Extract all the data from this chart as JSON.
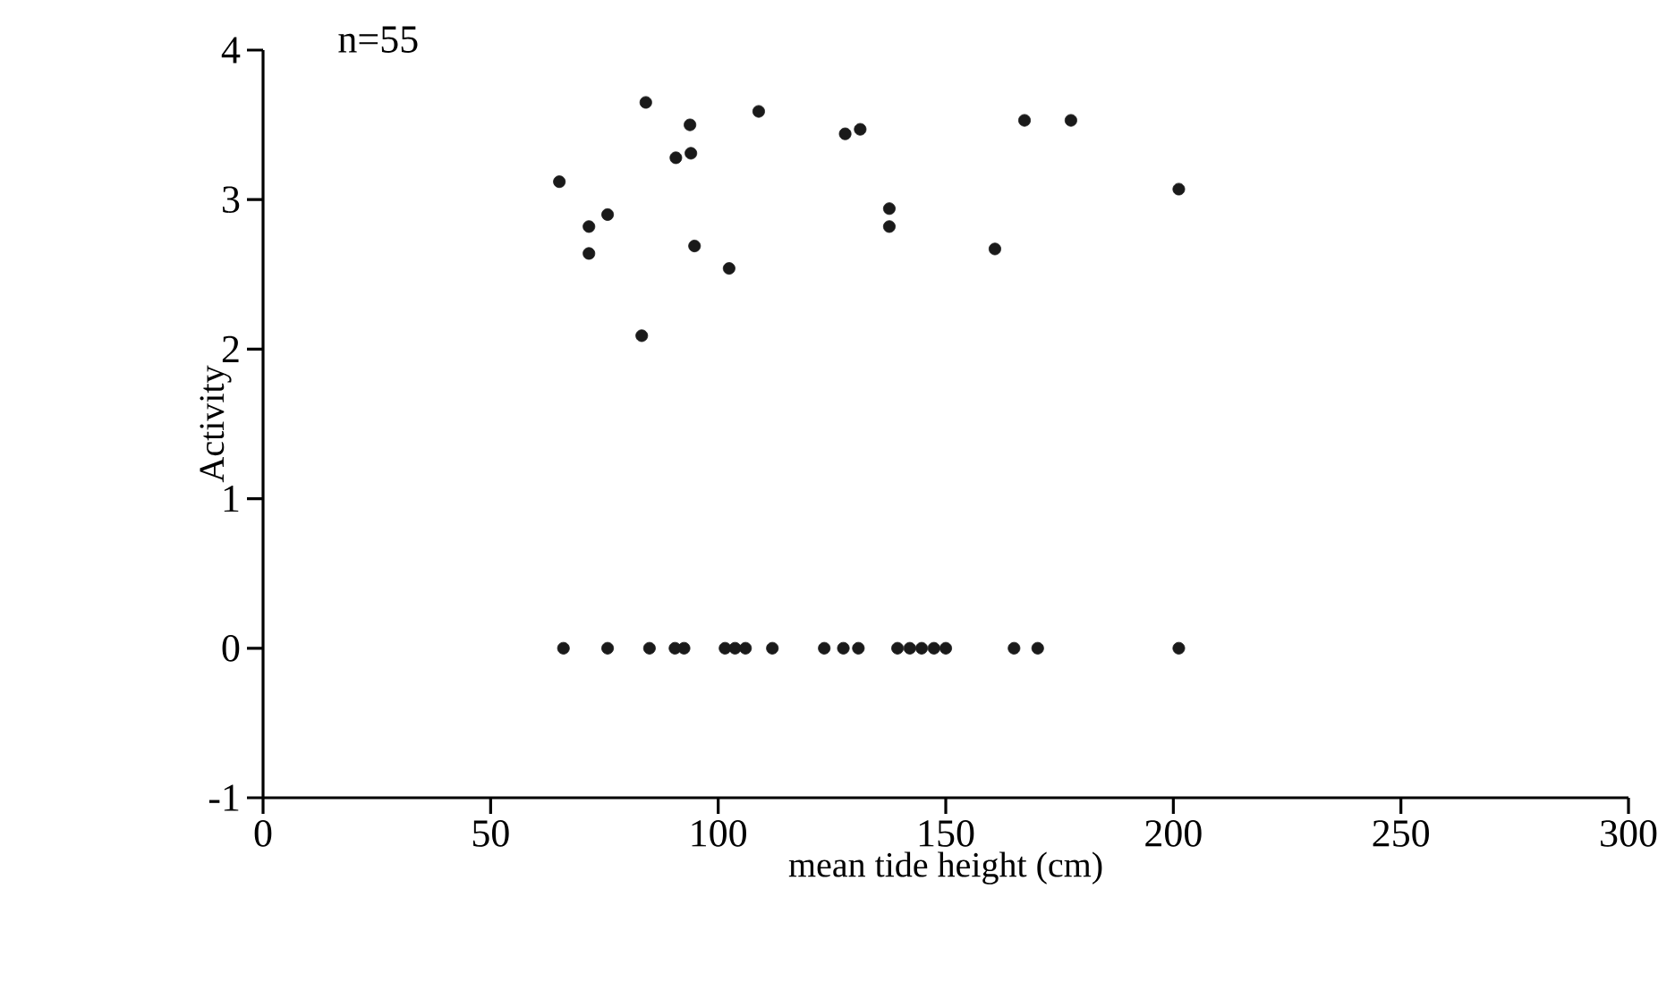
{
  "chart_data": {
    "type": "scatter",
    "xlabel": "mean tide height (cm)",
    "ylabel": "Activity",
    "annotations": [
      "n=55"
    ],
    "series": [
      {
        "color": "#1a1a1a",
        "x": [
          84.1,
          93.8,
          108.9,
          90.7,
          94.0,
          65.1,
          75.7,
          71.6,
          71.6,
          94.8,
          102.4,
          83.2,
          127.9,
          131.2,
          137.6,
          137.6,
          167.3,
          177.5,
          201.2,
          160.8,
          66.0,
          75.7,
          84.9,
          90.5,
          92.5,
          101.5,
          103.7,
          106.0,
          111.9,
          123.3,
          127.5,
          130.8,
          139.4,
          142.1,
          144.7,
          147.4,
          150.0,
          165.0,
          170.2,
          201.2
        ],
        "values": [
          3.65,
          3.5,
          3.59,
          3.28,
          3.31,
          3.12,
          2.9,
          2.82,
          2.64,
          2.69,
          2.54,
          2.09,
          3.44,
          3.47,
          2.94,
          2.82,
          3.53,
          3.53,
          3.07,
          2.67,
          0,
          0,
          0,
          0,
          0,
          0,
          0,
          0,
          0,
          0,
          0,
          0,
          0,
          0,
          0,
          0,
          0,
          0,
          0,
          0
        ]
      }
    ],
    "xlim": [
      0,
      300
    ],
    "ylim": [
      -1,
      4
    ],
    "xticks": [
      0,
      50,
      100,
      150,
      200,
      250,
      300
    ],
    "yticks": [
      -1,
      0,
      1,
      2,
      3,
      4
    ],
    "marker": "circle"
  }
}
